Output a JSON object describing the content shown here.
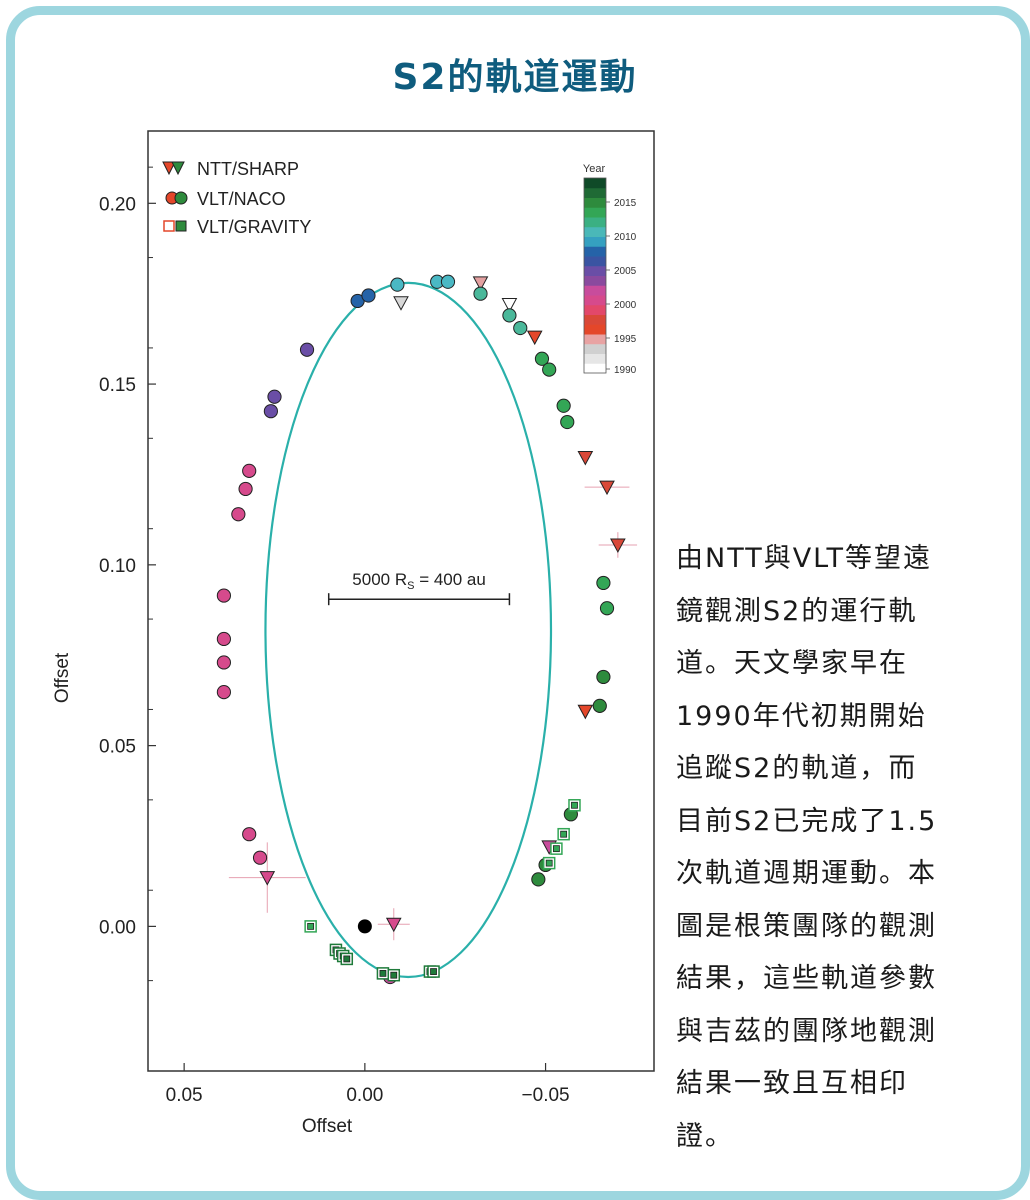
{
  "title": "S2的軌道運動",
  "description": "由NTT與VLT等望遠\n鏡觀測S2的運行軌\n道。天文學家早在\n1990年代初期開始\n追蹤S2的軌道，而\n目前S2已完成了1.5\n次軌道週期運動。本\n圖是根策團隊的觀測\n結果，這些軌道參數\n與吉茲的團隊地觀測\n結果一致且互相印\n證。",
  "chart_data": {
    "type": "scatter",
    "xlabel": "Offset",
    "ylabel": "Offset",
    "x_ticks": [
      "0.05",
      "0.00",
      "−0.05"
    ],
    "x_tick_values": [
      0.05,
      0.0,
      -0.05
    ],
    "y_ticks": [
      "0.00",
      "0.05",
      "0.10",
      "0.15",
      "0.20"
    ],
    "y_tick_values": [
      0.0,
      0.05,
      0.1,
      0.15,
      0.2
    ],
    "xlim": [
      0.06,
      -0.08
    ],
    "ylim": [
      -0.04,
      0.22
    ],
    "scale_bar_label": "5000 R",
    "scale_bar_sub": "S",
    "scale_bar_rest": " = 400 au",
    "scale_bar_from": 0.01,
    "scale_bar_to": -0.04,
    "scale_bar_y": 0.0905,
    "black_hole": [
      0.0,
      0.0
    ],
    "orbit": {
      "center": [
        -0.012,
        0.082
      ],
      "rx": 0.0395,
      "ry": 0.096
    },
    "legend": [
      {
        "label": "NTT/SHARP",
        "marker": "triangle"
      },
      {
        "label": "VLT/NACO",
        "marker": "circle"
      },
      {
        "label": "VLT/GRAVITY",
        "marker": "square"
      }
    ],
    "colorbar": {
      "title": "Year",
      "ticks": [
        "2015",
        "2010",
        "2005",
        "2000",
        "1995",
        "1990"
      ],
      "stops": [
        "#ffffff",
        "#e6e6e6",
        "#d0d0d0",
        "#e8a3a3",
        "#e4472a",
        "#d94838",
        "#e2486a",
        "#d64a8c",
        "#c84c9c",
        "#8a4a9e",
        "#6a4ea6",
        "#3a54a2",
        "#2563a8",
        "#35a0c0",
        "#4ab8b8",
        "#3bb083",
        "#33a656",
        "#2e8b3d",
        "#1f6a35",
        "#0f4a28"
      ]
    },
    "points": [
      {
        "m": "t",
        "x": -0.008,
        "y": 0.0006,
        "c": "#d64a8c"
      },
      {
        "m": "t",
        "x": 0.027,
        "y": 0.0135,
        "c": "#d64a8c"
      },
      {
        "m": "t",
        "x": -0.01,
        "y": 0.1725,
        "c": "#d8d8d8"
      },
      {
        "m": "t",
        "x": -0.032,
        "y": 0.178,
        "c": "#e3a0a0"
      },
      {
        "m": "t",
        "x": -0.04,
        "y": 0.172,
        "c": "#ffffff"
      },
      {
        "m": "t",
        "x": -0.047,
        "y": 0.163,
        "c": "#e4472a"
      },
      {
        "m": "t",
        "x": -0.061,
        "y": 0.1297,
        "c": "#d94838"
      },
      {
        "m": "t",
        "x": -0.067,
        "y": 0.1215,
        "c": "#d94838"
      },
      {
        "m": "t",
        "x": -0.07,
        "y": 0.1055,
        "c": "#d94838"
      },
      {
        "m": "t",
        "x": -0.061,
        "y": 0.0595,
        "c": "#e4472a"
      },
      {
        "m": "t",
        "x": -0.051,
        "y": 0.022,
        "c": "#c84c9c"
      },
      {
        "m": "c",
        "x": 0.039,
        "y": 0.0915,
        "c": "#d64a8c"
      },
      {
        "m": "c",
        "x": 0.039,
        "y": 0.0795,
        "c": "#d64a8c"
      },
      {
        "m": "c",
        "x": 0.039,
        "y": 0.073,
        "c": "#d64a8c"
      },
      {
        "m": "c",
        "x": 0.039,
        "y": 0.0648,
        "c": "#d64a8c"
      },
      {
        "m": "c",
        "x": 0.035,
        "y": 0.114,
        "c": "#d64a8c"
      },
      {
        "m": "c",
        "x": 0.033,
        "y": 0.121,
        "c": "#d64a8c"
      },
      {
        "m": "c",
        "x": 0.032,
        "y": 0.126,
        "c": "#d64a8c"
      },
      {
        "m": "c",
        "x": 0.032,
        "y": 0.0255,
        "c": "#d64a8c"
      },
      {
        "m": "c",
        "x": 0.029,
        "y": 0.019,
        "c": "#d64a8c"
      },
      {
        "m": "c",
        "x": 0.025,
        "y": 0.1465,
        "c": "#6a4ea6"
      },
      {
        "m": "c",
        "x": 0.026,
        "y": 0.1425,
        "c": "#6a4ea6"
      },
      {
        "m": "c",
        "x": 0.016,
        "y": 0.1595,
        "c": "#6a4ea6"
      },
      {
        "m": "c",
        "x": 0.002,
        "y": 0.173,
        "c": "#2563a8"
      },
      {
        "m": "c",
        "x": -0.001,
        "y": 0.1745,
        "c": "#2563a8"
      },
      {
        "m": "c",
        "x": -0.009,
        "y": 0.1775,
        "c": "#4ab8c4"
      },
      {
        "m": "c",
        "x": -0.02,
        "y": 0.1783,
        "c": "#4ab8c4"
      },
      {
        "m": "c",
        "x": -0.023,
        "y": 0.1783,
        "c": "#4ab8c4"
      },
      {
        "m": "c",
        "x": -0.032,
        "y": 0.175,
        "c": "#4ab89a"
      },
      {
        "m": "c",
        "x": -0.04,
        "y": 0.169,
        "c": "#4ab89a"
      },
      {
        "m": "c",
        "x": -0.043,
        "y": 0.1655,
        "c": "#4ab89a"
      },
      {
        "m": "c",
        "x": -0.049,
        "y": 0.157,
        "c": "#33a656"
      },
      {
        "m": "c",
        "x": -0.051,
        "y": 0.154,
        "c": "#33a656"
      },
      {
        "m": "c",
        "x": -0.055,
        "y": 0.144,
        "c": "#33a656"
      },
      {
        "m": "c",
        "x": -0.056,
        "y": 0.1395,
        "c": "#33a656"
      },
      {
        "m": "c",
        "x": -0.066,
        "y": 0.095,
        "c": "#33a656"
      },
      {
        "m": "c",
        "x": -0.067,
        "y": 0.088,
        "c": "#33a656"
      },
      {
        "m": "c",
        "x": -0.066,
        "y": 0.069,
        "c": "#2e8b3d"
      },
      {
        "m": "c",
        "x": -0.065,
        "y": 0.061,
        "c": "#2e8b3d"
      },
      {
        "m": "c",
        "x": -0.057,
        "y": 0.031,
        "c": "#2e8b3d"
      },
      {
        "m": "c",
        "x": -0.05,
        "y": 0.017,
        "c": "#2e8b3d"
      },
      {
        "m": "c",
        "x": -0.048,
        "y": 0.013,
        "c": "#2e8b3d"
      },
      {
        "m": "c",
        "x": -0.007,
        "y": -0.014,
        "c": "#c84c9c"
      },
      {
        "m": "s",
        "x": 0.015,
        "y": 0.0,
        "c": "#33a656"
      },
      {
        "m": "s",
        "x": 0.008,
        "y": -0.0065,
        "c": "#1f7a3a"
      },
      {
        "m": "s",
        "x": 0.007,
        "y": -0.0075,
        "c": "#1f7a3a"
      },
      {
        "m": "s",
        "x": 0.006,
        "y": -0.0082,
        "c": "#1f7a3a"
      },
      {
        "m": "s",
        "x": 0.005,
        "y": -0.009,
        "c": "#1f7a3a"
      },
      {
        "m": "s",
        "x": -0.005,
        "y": -0.013,
        "c": "#1f7a3a"
      },
      {
        "m": "s",
        "x": -0.008,
        "y": -0.0135,
        "c": "#1f7a3a"
      },
      {
        "m": "s",
        "x": -0.018,
        "y": -0.0125,
        "c": "#1f7a3a"
      },
      {
        "m": "s",
        "x": -0.019,
        "y": -0.0125,
        "c": "#1f7a3a"
      },
      {
        "m": "s",
        "x": -0.051,
        "y": 0.0175,
        "c": "#33a656"
      },
      {
        "m": "s",
        "x": -0.053,
        "y": 0.0215,
        "c": "#33a656"
      },
      {
        "m": "s",
        "x": -0.055,
        "y": 0.0255,
        "c": "#33a656"
      },
      {
        "m": "s",
        "x": -0.058,
        "y": 0.0335,
        "c": "#33a656"
      }
    ]
  }
}
